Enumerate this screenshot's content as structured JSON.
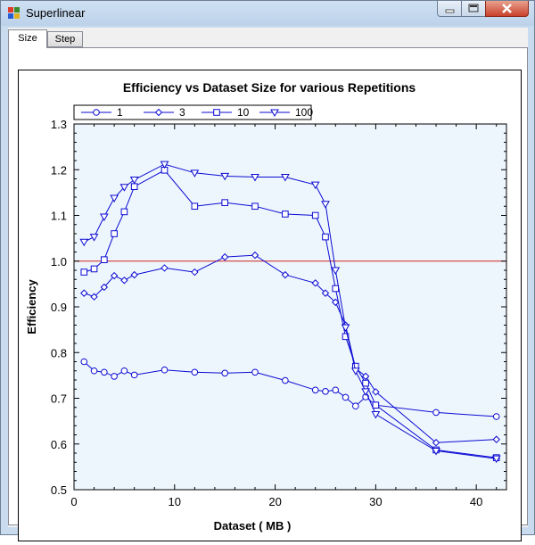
{
  "window": {
    "title": "Superlinear"
  },
  "tabs": [
    {
      "label": "Size"
    },
    {
      "label": "Step"
    }
  ],
  "colors": {
    "series": "#0a0ad2",
    "reference_line": "#cc2222",
    "plot_bg": "#eef6fd"
  },
  "chart_data": {
    "type": "line",
    "title": "Efficiency vs Dataset Size for various Repetitions",
    "xlabel": "Dataset ( MB )",
    "ylabel": "Efficiency",
    "xlim": [
      0,
      43
    ],
    "ylim": [
      0.5,
      1.3
    ],
    "xticks": [
      "0",
      "10",
      "20",
      "30",
      "40"
    ],
    "yticks": [
      "0.5",
      "0.6",
      "0.7",
      "0.8",
      "0.9",
      "1.0",
      "1.1",
      "1.2",
      "1.3"
    ],
    "legend_position": "top-left",
    "reference_line": {
      "y": 1.0
    },
    "series": [
      {
        "name": "1",
        "marker": "circle",
        "x": [
          1,
          2,
          3,
          4,
          5,
          6,
          9,
          12,
          15,
          18,
          21,
          24,
          25,
          26,
          27,
          28,
          29,
          30,
          36,
          42
        ],
        "y": [
          0.78,
          0.76,
          0.757,
          0.748,
          0.76,
          0.751,
          0.762,
          0.757,
          0.755,
          0.757,
          0.739,
          0.718,
          0.715,
          0.718,
          0.702,
          0.683,
          0.703,
          0.685,
          0.669,
          0.66
        ]
      },
      {
        "name": "3",
        "marker": "diamond",
        "x": [
          1,
          2,
          3,
          4,
          5,
          6,
          9,
          12,
          15,
          18,
          21,
          24,
          25,
          26,
          27,
          28,
          29,
          30,
          36,
          42
        ],
        "y": [
          0.93,
          0.922,
          0.943,
          0.968,
          0.958,
          0.97,
          0.985,
          0.976,
          1.009,
          1.013,
          0.97,
          0.952,
          0.93,
          0.91,
          0.86,
          0.765,
          0.748,
          0.714,
          0.603,
          0.61
        ]
      },
      {
        "name": "10",
        "marker": "square",
        "x": [
          1,
          2,
          3,
          4,
          5,
          6,
          9,
          12,
          15,
          18,
          21,
          24,
          25,
          26,
          27,
          28,
          29,
          30,
          36,
          42
        ],
        "y": [
          0.976,
          0.983,
          1.003,
          1.06,
          1.108,
          1.163,
          1.199,
          1.12,
          1.128,
          1.12,
          1.103,
          1.1,
          1.053,
          0.94,
          0.835,
          0.77,
          0.733,
          0.685,
          0.587,
          0.57
        ]
      },
      {
        "name": "100",
        "marker": "triangle-down",
        "x": [
          1,
          2,
          3,
          4,
          5,
          6,
          9,
          12,
          15,
          18,
          21,
          24,
          25,
          26,
          27,
          28,
          29,
          30,
          36,
          42
        ],
        "y": [
          1.042,
          1.053,
          1.097,
          1.138,
          1.162,
          1.178,
          1.212,
          1.193,
          1.186,
          1.184,
          1.184,
          1.167,
          1.125,
          0.98,
          0.855,
          0.76,
          0.715,
          0.665,
          0.585,
          0.568
        ]
      }
    ]
  }
}
